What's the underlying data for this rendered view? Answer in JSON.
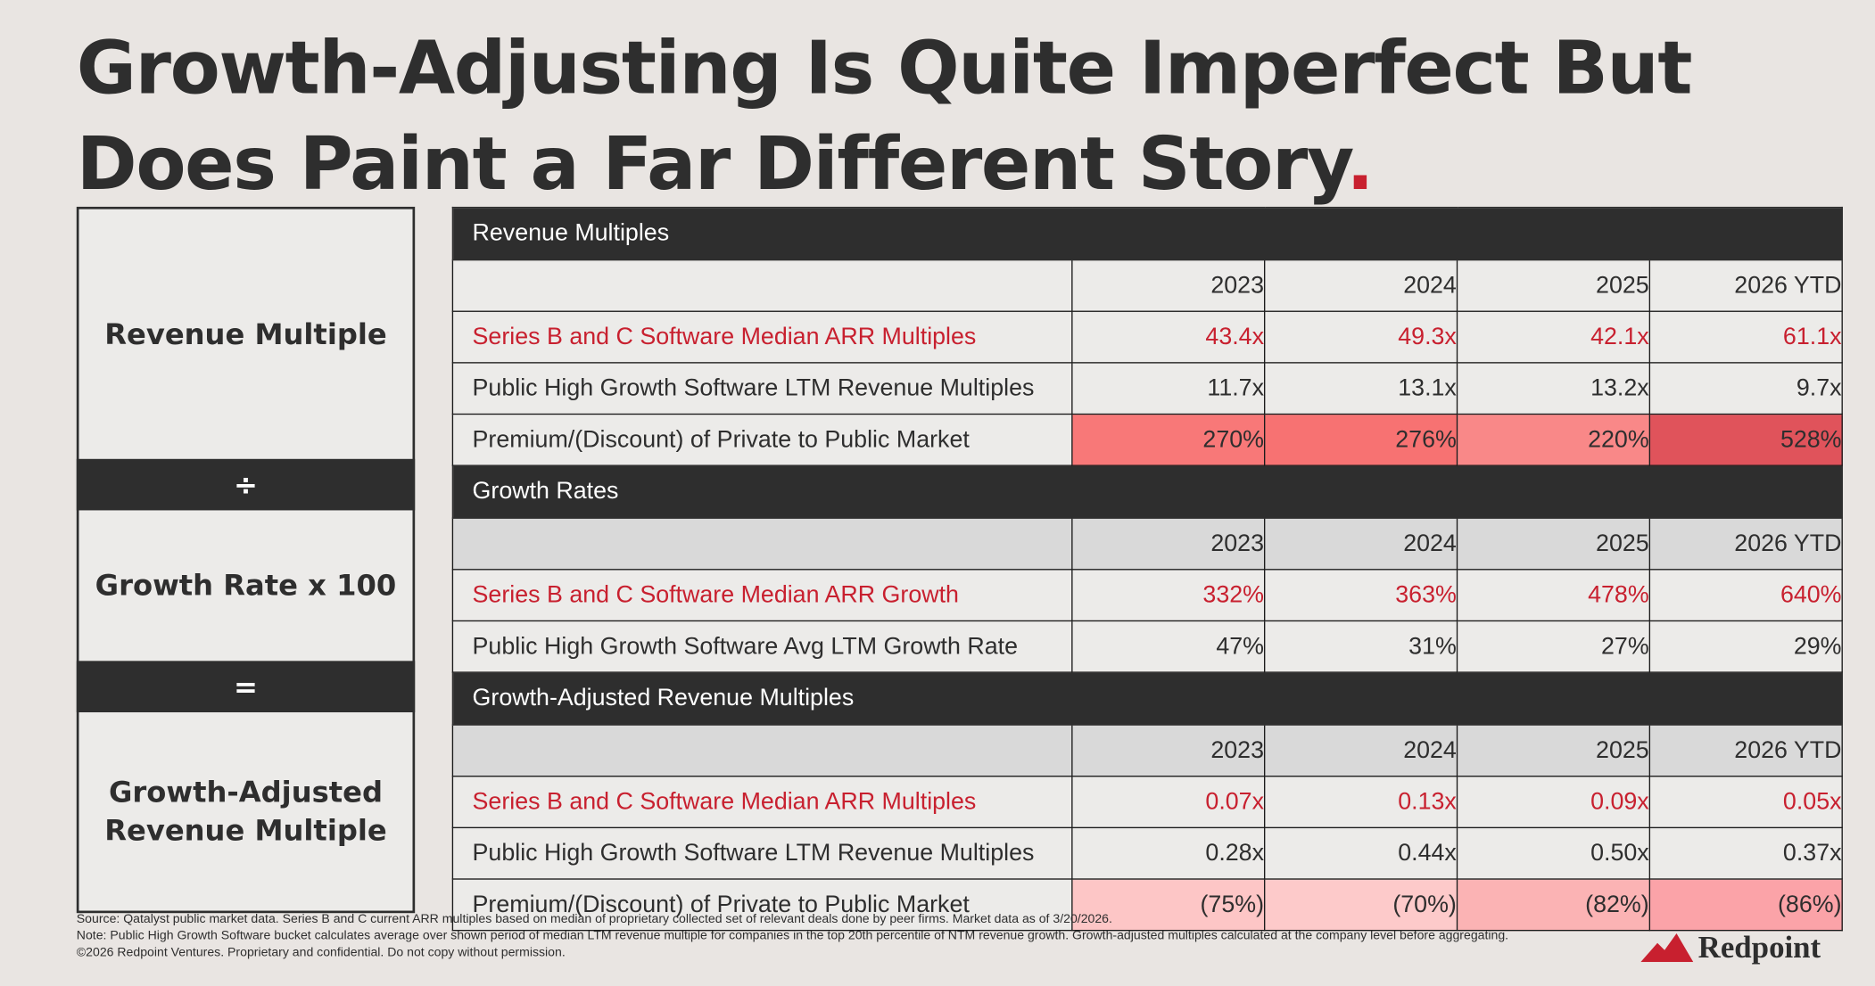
{
  "title_lines": [
    "Growth-Adjusting Is Quite Imperfect But",
    "Does Paint a Far Different Story"
  ],
  "title_mark": ".",
  "formula": [
    "Revenue Multiple",
    "÷",
    "Growth Rate x 100",
    "=",
    "Growth-Adjusted Revenue Multiple"
  ],
  "sections": [
    {
      "title": "Revenue Multiples",
      "columns": [
        "2023",
        "2024",
        "2025",
        "2026 YTD"
      ],
      "rows": [
        {
          "label": "Series B and C Software Median ARR Multiples",
          "values": [
            "43.4x",
            "49.3x",
            "42.1x",
            "61.1x"
          ]
        },
        {
          "label": "Public High Growth Software LTM Revenue Multiples",
          "values": [
            "11.7x",
            "13.1x",
            "13.2x",
            "9.7x"
          ]
        },
        {
          "label": "Premium/(Discount) of Private to Public Market",
          "values": [
            "270%",
            "276%",
            "220%",
            "528%"
          ]
        }
      ]
    },
    {
      "title": "Growth Rates",
      "columns": [
        "2023",
        "2024",
        "2025",
        "2026 YTD"
      ],
      "rows": [
        {
          "label": "Series B and C Software Median ARR Growth",
          "values": [
            "332%",
            "363%",
            "478%",
            "640%"
          ]
        },
        {
          "label": "Public High Growth Software Avg LTM Growth Rate",
          "values": [
            "47%",
            "31%",
            "27%",
            "29%"
          ]
        }
      ]
    },
    {
      "title": "Growth-Adjusted Revenue Multiples",
      "columns": [
        "2023",
        "2024",
        "2025",
        "2026 YTD"
      ],
      "rows": [
        {
          "label": "Series B and C Software Median ARR Multiples",
          "values": [
            "0.07x",
            "0.13x",
            "0.09x",
            "0.05x"
          ]
        },
        {
          "label": "Public High Growth Software LTM Revenue Multiples",
          "values": [
            "0.28x",
            "0.44x",
            "0.50x",
            "0.37x"
          ]
        },
        {
          "label": "Premium/(Discount) of Private to Public Market",
          "values": [
            "(75%)",
            "(70%)",
            "(82%)",
            "(86%)"
          ]
        }
      ]
    }
  ],
  "footnotes": [
    "Source: Qatalyst public market data. Series B and C current ARR multiples based on median of proprietary collected set of relevant deals done by peer firms. Market data as of 3/20/2026.",
    "Note: Public High Growth Software bucket calculates average over shown period of median LTM revenue multiple for companies in the top 20th percentile of NTM revenue growth. Growth-adjusted multiples calculated at the company level before aggregating.",
    "©2026 Redpoint Ventures. Proprietary and confidential. Do not copy without permission."
  ],
  "logo": "Redpoint"
}
